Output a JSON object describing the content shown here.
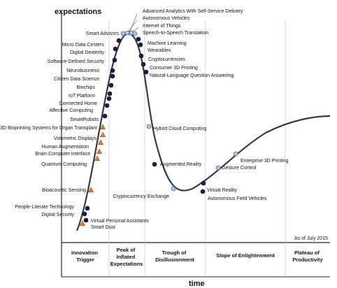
{
  "axes": {
    "y_label": "expectations",
    "x_label": "time"
  },
  "note": "As of July 2015",
  "phases": [
    {
      "lines": [
        "Innovation",
        "Trigger"
      ]
    },
    {
      "lines": [
        "Peak of",
        "Inflated",
        "Expectations"
      ]
    },
    {
      "lines": [
        "Trough of",
        "Disillusionment"
      ]
    },
    {
      "lines": [
        "Slope of Enlightenment"
      ]
    },
    {
      "lines": [
        "Plateau of",
        "Productivity"
      ]
    }
  ],
  "legend_colors": {
    "dark": "#1b1f4a",
    "light": "#a9c8e8",
    "orange": "#e8782c",
    "curve": "#3a3a3a"
  },
  "technologies": [
    {
      "name": "Advanced Analytics With Self-Service Delivery",
      "marker": "light"
    },
    {
      "name": "Autonomous Vehicles",
      "marker": "light"
    },
    {
      "name": "Internet of Things",
      "marker": "light"
    },
    {
      "name": "Speech-to-Speech Translation",
      "marker": "light"
    },
    {
      "name": "Machine Learning",
      "marker": "dark"
    },
    {
      "name": "Wearables",
      "marker": "dark"
    },
    {
      "name": "Cryptocurrencies",
      "marker": "dark"
    },
    {
      "name": "Consumer 3D Printing",
      "marker": "dark"
    },
    {
      "name": "Natural-Language Question Answering",
      "marker": "dark"
    },
    {
      "name": "Smart Advisors",
      "marker": "light"
    },
    {
      "name": "Micro Data Centers",
      "marker": "dark"
    },
    {
      "name": "Digital Dexterity",
      "marker": "dark"
    },
    {
      "name": "Software-Defined Security",
      "marker": "dark"
    },
    {
      "name": "Neurobusiness",
      "marker": "dark"
    },
    {
      "name": "Citizen Data Science",
      "marker": "dark"
    },
    {
      "name": "Biochips",
      "marker": "dark"
    },
    {
      "name": "IoT Platform",
      "marker": "dark"
    },
    {
      "name": "Connected Home",
      "marker": "dark"
    },
    {
      "name": "Affective Computing",
      "marker": "dark"
    },
    {
      "name": "SmartRobots",
      "marker": "dark"
    },
    {
      "name": "3D Bioprinting Systems for Organ Transplant",
      "marker": "orange"
    },
    {
      "name": "Volumetric Displays",
      "marker": "orange"
    },
    {
      "name": "Human Augmentation",
      "marker": "orange"
    },
    {
      "name": "Brain-Computer Interface",
      "marker": "orange"
    },
    {
      "name": "Quantum Computing",
      "marker": "orange"
    },
    {
      "name": "Bioacoustic Sensing",
      "marker": "orange"
    },
    {
      "name": "People-Literate Technology",
      "marker": "dark"
    },
    {
      "name": "Digital Security",
      "marker": "dark"
    },
    {
      "name": "Virtual Personal Assistants",
      "marker": "dark"
    },
    {
      "name": "Smart Dust",
      "marker": "orange"
    },
    {
      "name": "Hybrid Cloud Computing",
      "marker": "light"
    },
    {
      "name": "Augmented Reality",
      "marker": "dark"
    },
    {
      "name": "Cryptocurrency Exchange",
      "marker": "light"
    },
    {
      "name": "Virtual Reality",
      "marker": "dark"
    },
    {
      "name": "Autonomous Field Vehicles",
      "marker": "dark"
    },
    {
      "name": "Gesture Control",
      "marker": "light"
    },
    {
      "name": "Enterprise 3D Printing",
      "marker": "light"
    }
  ]
}
